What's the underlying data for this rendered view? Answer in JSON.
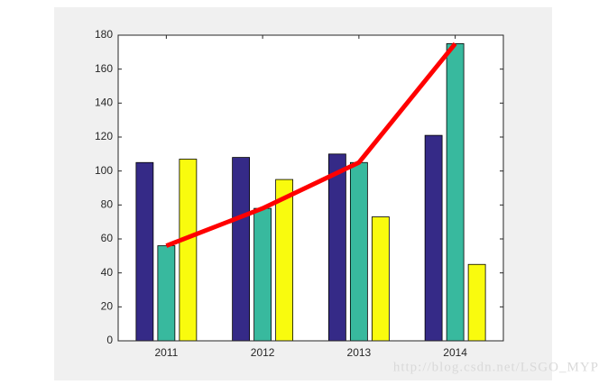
{
  "chart_data": {
    "type": "bar",
    "x": [
      2011,
      2012,
      2013,
      2014
    ],
    "xlim": [
      2010.5,
      2014.5
    ],
    "xticks": [
      2011,
      2012,
      2013,
      2014
    ],
    "ylim": [
      0,
      180
    ],
    "yticks": [
      0,
      20,
      40,
      60,
      80,
      100,
      120,
      140,
      160,
      180
    ],
    "series": [
      {
        "type": "bar",
        "color": "#352a87",
        "values": [
          105,
          108,
          110,
          121
        ]
      },
      {
        "type": "bar",
        "color": "#38b99e",
        "values": [
          56,
          78,
          105,
          175
        ]
      },
      {
        "type": "bar",
        "color": "#f9fb0e",
        "values": [
          107,
          95,
          73,
          45
        ]
      },
      {
        "type": "line",
        "color": "#ff0000",
        "values": [
          56,
          78,
          105,
          175
        ]
      }
    ],
    "watermark": "http://blog.csdn.net/LSGO_MYP"
  }
}
